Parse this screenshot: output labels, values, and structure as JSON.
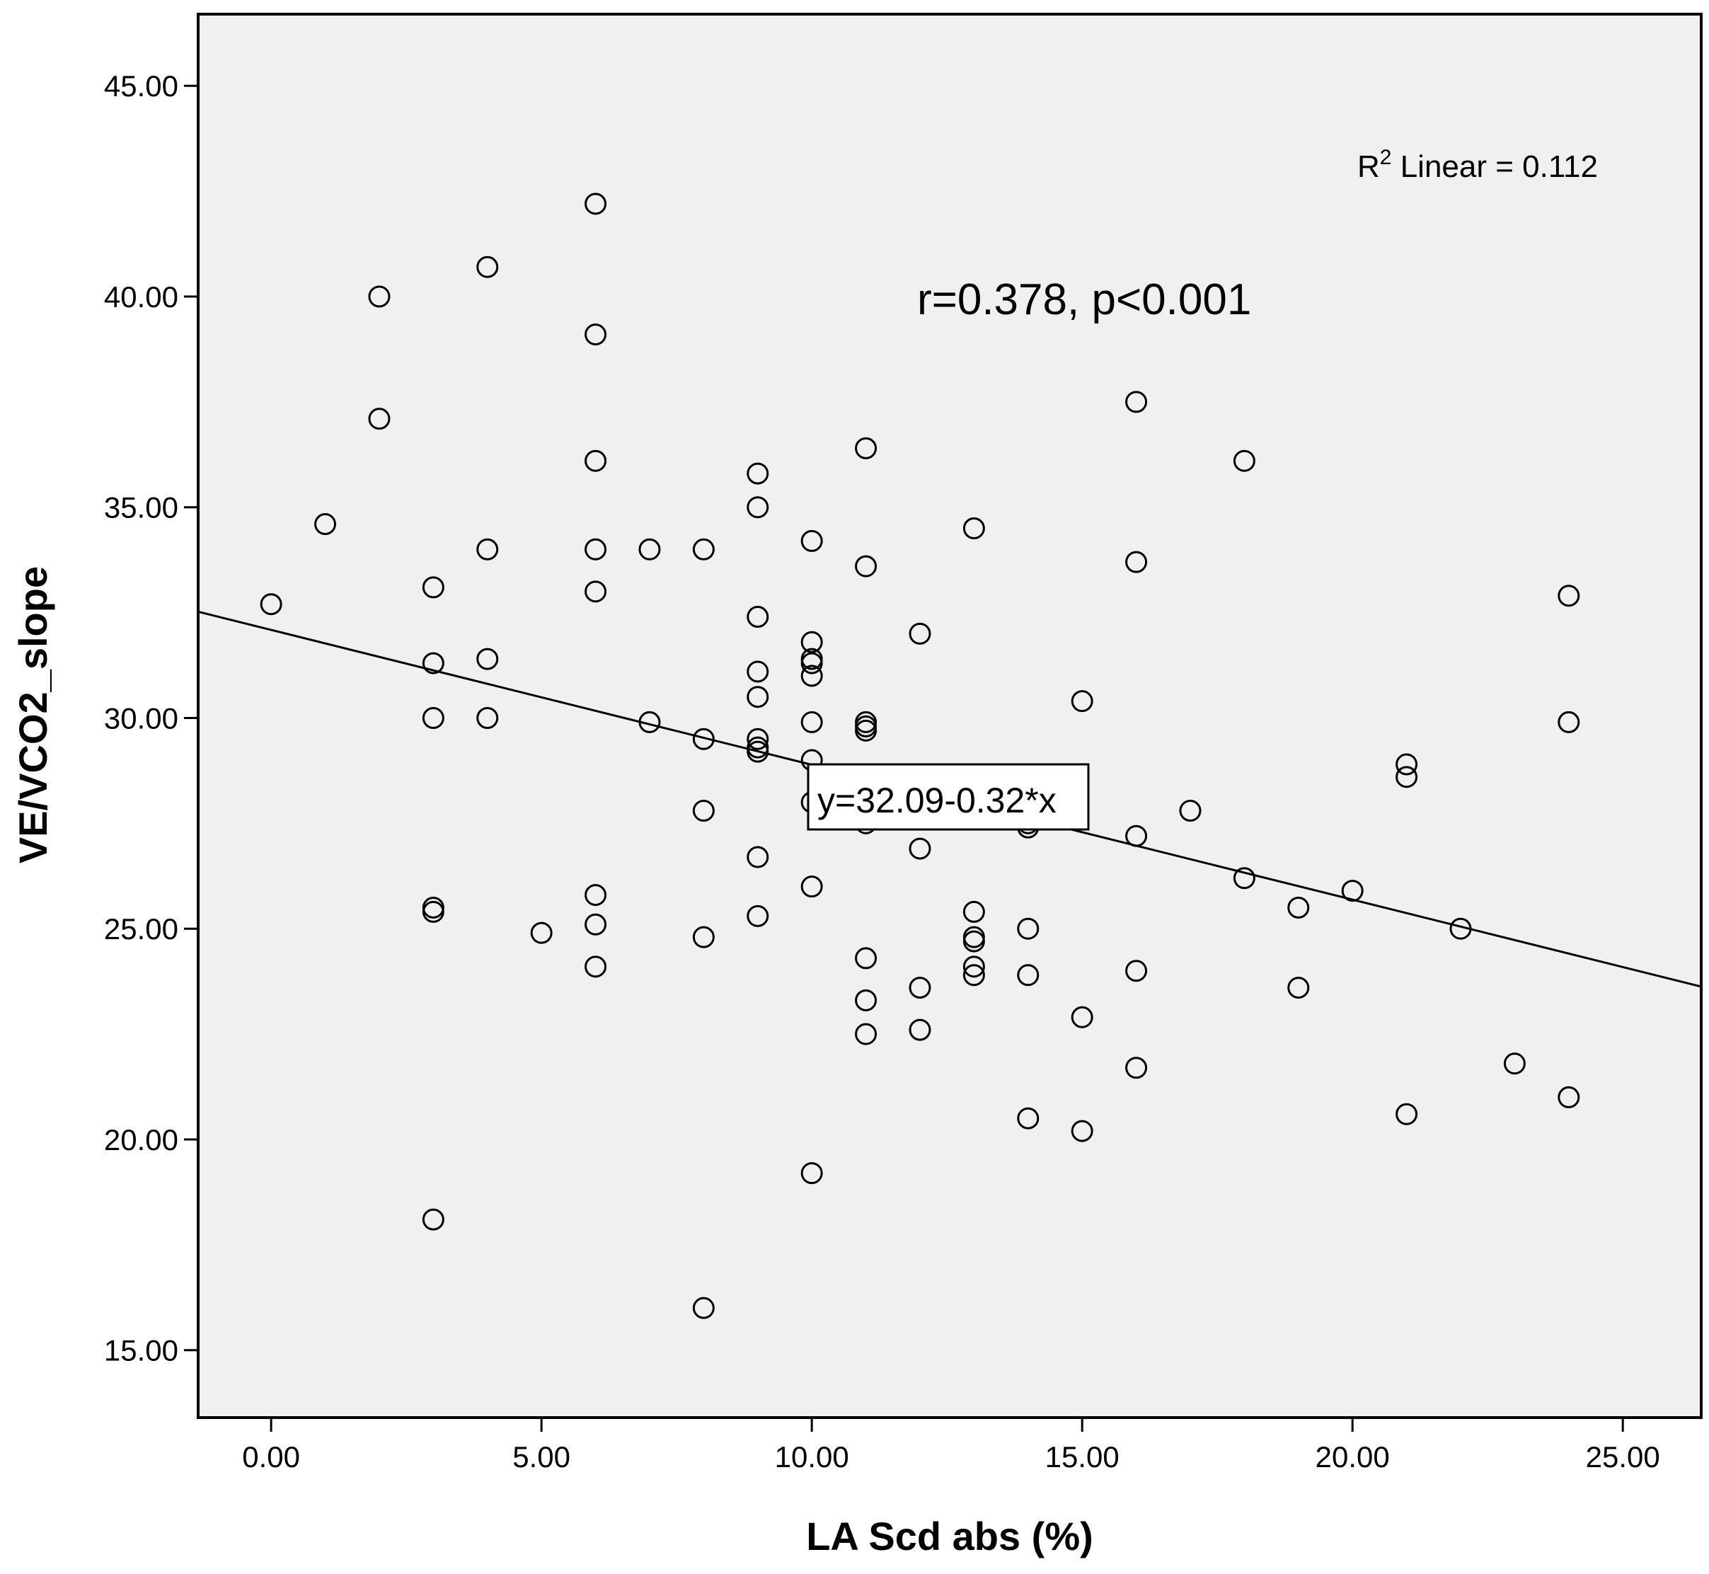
{
  "chart_data": {
    "type": "scatter",
    "xlabel": "LA Scd abs (%)",
    "ylabel": "VE/VCO2_slope",
    "xlim": [
      -1.35,
      26.45
    ],
    "ylim": [
      13.4,
      46.7
    ],
    "xticks": [
      "0.00",
      "5.00",
      "10.00",
      "15.00",
      "20.00",
      "25.00"
    ],
    "yticks": [
      "15.00",
      "20.00",
      "25.00",
      "30.00",
      "35.00",
      "40.00",
      "45.00"
    ],
    "r2_label": {
      "base": "R",
      "superscript": "2",
      "text": " Linear = 0.112"
    },
    "correlation_annotation": "r=0.378, p<0.001",
    "fit_line": {
      "intercept": 32.09,
      "slope": -0.32,
      "label": "y=32.09-0.32*x"
    },
    "colors": {
      "plot_background": "#f0f0f0",
      "marker_stroke": "#000000",
      "frame": "#000000"
    },
    "series": [
      {
        "name": "VE/VCO2_slope",
        "x": [
          0,
          1,
          2,
          2,
          3,
          3,
          3,
          3,
          3,
          3,
          4,
          4,
          4,
          4,
          5,
          6,
          6,
          6,
          6,
          6,
          6,
          6,
          6,
          7,
          7,
          8,
          8,
          8,
          8,
          8,
          9,
          9,
          9,
          9,
          9,
          9,
          9,
          9,
          9,
          9,
          10,
          10,
          10,
          10,
          10,
          10,
          10,
          10,
          10,
          10,
          11,
          11,
          11,
          11,
          11,
          11,
          11,
          11,
          11,
          12,
          12,
          12,
          12,
          13,
          13,
          13,
          13,
          13,
          13,
          14,
          14,
          14,
          14,
          14,
          15,
          15,
          15,
          16,
          16,
          16,
          16,
          16,
          17,
          18,
          18,
          19,
          19,
          20,
          21,
          21,
          21,
          22,
          23,
          24,
          24,
          24
        ],
        "y": [
          32.7,
          34.6,
          40.0,
          37.1,
          33.1,
          31.3,
          30.0,
          25.5,
          25.4,
          18.1,
          40.7,
          34.0,
          31.4,
          30.0,
          24.9,
          42.2,
          39.1,
          36.1,
          33.0,
          25.8,
          25.1,
          24.1,
          34.0,
          29.9,
          34.0,
          29.5,
          27.8,
          24.8,
          16.0,
          34.0,
          35.8,
          35.0,
          32.4,
          31.1,
          30.5,
          29.5,
          29.2,
          26.7,
          25.3,
          29.3,
          34.2,
          31.8,
          31.4,
          31.3,
          31.0,
          29.9,
          29.0,
          28.0,
          26.0,
          19.2,
          36.4,
          33.6,
          29.9,
          29.7,
          27.5,
          24.3,
          23.3,
          22.5,
          29.8,
          32.0,
          26.9,
          23.6,
          22.6,
          34.5,
          25.4,
          24.8,
          24.7,
          24.1,
          23.9,
          27.4,
          25.0,
          23.9,
          20.5,
          27.5,
          30.4,
          22.9,
          20.2,
          37.5,
          33.7,
          27.2,
          24.0,
          21.7,
          27.8,
          36.1,
          26.2,
          25.5,
          23.6,
          25.9,
          28.9,
          28.6,
          20.6,
          25.0,
          21.8,
          32.9,
          29.9,
          21.0
        ]
      }
    ]
  }
}
